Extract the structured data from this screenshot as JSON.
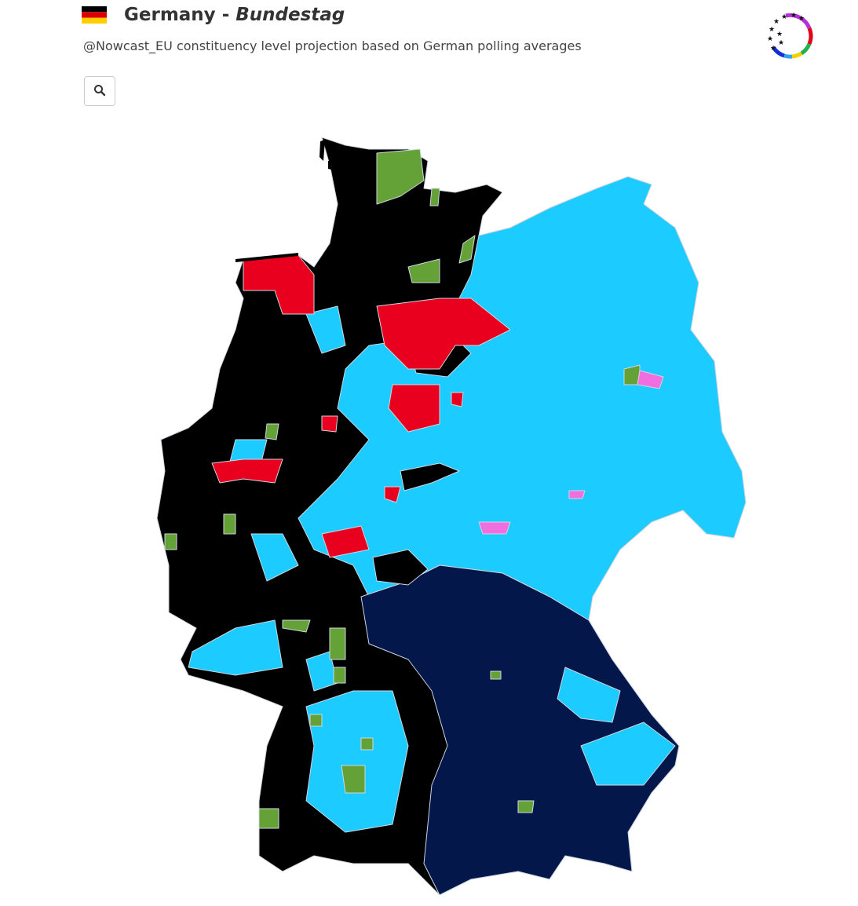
{
  "header": {
    "country": "Germany",
    "separator": "-",
    "chamber": "Bundestag",
    "subtitle": "@Nowcast_EU constituency level projection based on German polling averages"
  }
}
